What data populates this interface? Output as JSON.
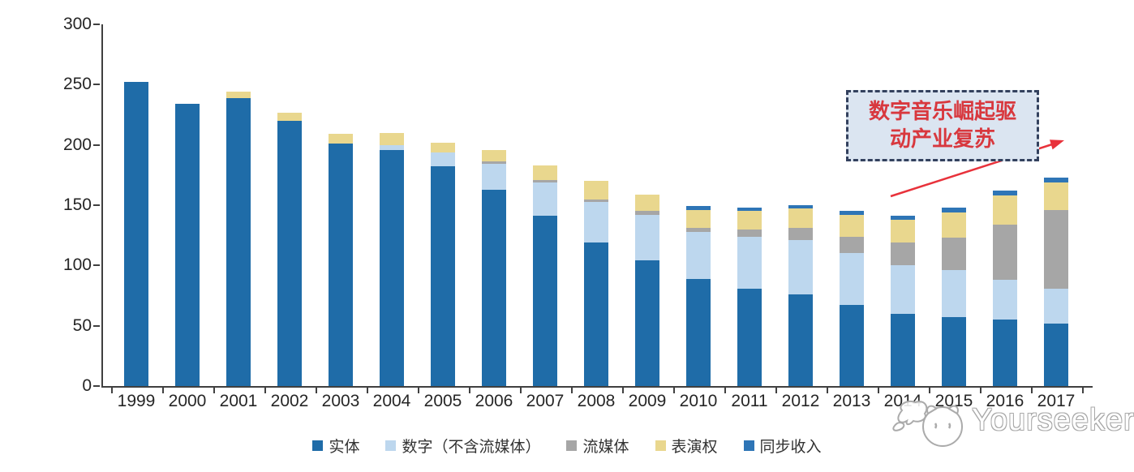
{
  "chart_data": {
    "type": "bar",
    "stacked": true,
    "categories": [
      "1999",
      "2000",
      "2001",
      "2002",
      "2003",
      "2004",
      "2005",
      "2006",
      "2007",
      "2008",
      "2009",
      "2010",
      "2011",
      "2012",
      "2013",
      "2014",
      "2015",
      "2016",
      "2017"
    ],
    "series": [
      {
        "name": "实体",
        "color": "#1F6CA8",
        "values": [
          252,
          234,
          239,
          220,
          201,
          196,
          182,
          163,
          141,
          119,
          104,
          89,
          81,
          76,
          67,
          60,
          57,
          55,
          52
        ]
      },
      {
        "name": "数字（不含流媒体）",
        "color": "#BDD7EE",
        "values": [
          0,
          0,
          0,
          0,
          0,
          4,
          12,
          21,
          28,
          34,
          38,
          39,
          43,
          45,
          43,
          40,
          39,
          33,
          29
        ]
      },
      {
        "name": "流媒体",
        "color": "#A6A6A6",
        "values": [
          0,
          0,
          0,
          0,
          0,
          0,
          0,
          2,
          2,
          2,
          3,
          3,
          6,
          10,
          14,
          19,
          27,
          46,
          65
        ]
      },
      {
        "name": "表演权",
        "color": "#E9D78E",
        "values": [
          0,
          0,
          5,
          7,
          8,
          10,
          8,
          10,
          12,
          15,
          14,
          15,
          15,
          16,
          18,
          19,
          21,
          24,
          23
        ]
      },
      {
        "name": "同步收入",
        "color": "#2E75B6",
        "values": [
          0,
          0,
          0,
          0,
          0,
          0,
          0,
          0,
          0,
          0,
          0,
          3,
          3,
          3,
          3,
          3,
          4,
          4,
          4
        ]
      }
    ],
    "ylim": [
      0,
      300
    ],
    "yticks": [
      0,
      50,
      100,
      150,
      200,
      250,
      300
    ],
    "grid": false,
    "legend_position": "bottom",
    "title": ""
  },
  "annotation": {
    "line1": "数字音乐崛起驱",
    "line2": "动产业复苏",
    "box_fill": "#DBE5F1",
    "border_color": "#33415E",
    "text_color": "#D8383E",
    "arrow_color": "#E8323B"
  },
  "watermark": {
    "text": "Yourseeker"
  },
  "axis": {
    "color": "#404040",
    "label_color": "#262626"
  }
}
